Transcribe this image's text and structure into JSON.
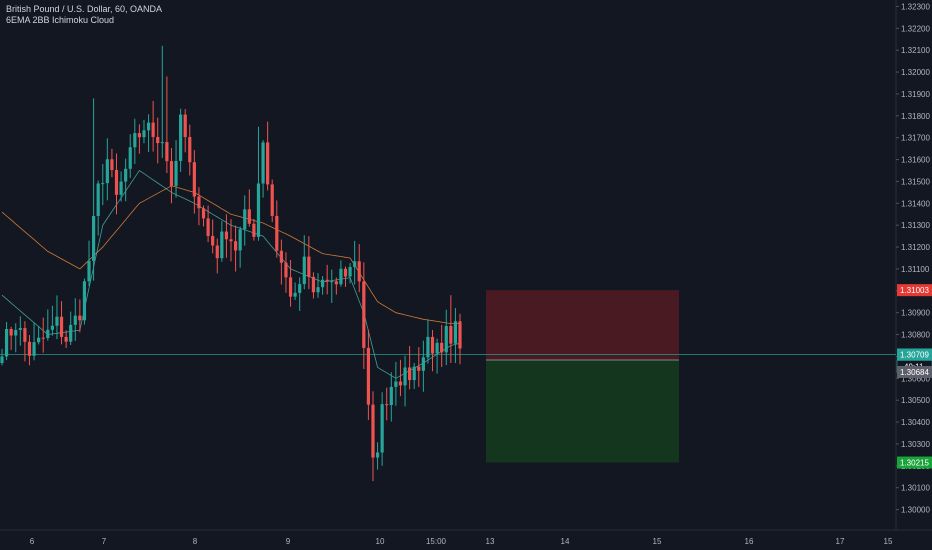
{
  "header": {
    "symbol_title": "British Pound / U.S. Dollar, 60, OANDA",
    "indicator_label": "6EMA 2BB Ichimoku Cloud"
  },
  "price_tags": {
    "stop": "1.31003",
    "current": "1.30709",
    "countdown": "49:11",
    "entry": "1.30684",
    "target": "1.30215"
  },
  "colors": {
    "background": "#131722",
    "up": "#26a69a",
    "down": "#ef5350",
    "ema_fast": "#4db6ac",
    "ema_slow": "#ef8c3a",
    "stop_zone": "#4a1a22",
    "target_zone": "#14361f",
    "current_line": "#26a69a",
    "stop_tag": "#e53935",
    "target_tag": "#1aa33a",
    "entry_tag": "#5d606b"
  },
  "chart_data": {
    "type": "candlestick",
    "title": "British Pound / U.S. Dollar, 60, OANDA",
    "ylim": [
      1.2995,
      1.3235
    ],
    "y_ticks": [
      "1.32300",
      "1.32200",
      "1.32100",
      "1.32000",
      "1.31900",
      "1.31800",
      "1.31700",
      "1.31600",
      "1.31500",
      "1.31400",
      "1.31300",
      "1.31200",
      "1.31100",
      "1.31000",
      "1.30900",
      "1.30800",
      "1.30700",
      "1.30600",
      "1.30500",
      "1.30400",
      "1.30300",
      "1.30200",
      "1.30100",
      "1.30000"
    ],
    "x_tick_labels": [
      "6",
      "7",
      "8",
      "9",
      "10",
      "15:00",
      "13",
      "14",
      "15",
      "16",
      "17",
      "15"
    ],
    "close_path": [
      [
        0,
        1.3075
      ],
      [
        3,
        1.3085
      ],
      [
        6,
        1.3072
      ],
      [
        9,
        1.3078
      ],
      [
        12,
        1.3085
      ],
      [
        14,
        1.3078
      ],
      [
        17,
        1.3091
      ],
      [
        19,
        1.3114
      ],
      [
        21,
        1.3146
      ],
      [
        23,
        1.316
      ],
      [
        25,
        1.3142
      ],
      [
        27,
        1.3155
      ],
      [
        29,
        1.3168
      ],
      [
        31,
        1.3175
      ],
      [
        33,
        1.3172
      ],
      [
        35,
        1.317
      ],
      [
        36,
        1.316
      ],
      [
        37,
        1.315
      ],
      [
        38,
        1.3155
      ],
      [
        39,
        1.318
      ],
      [
        40,
        1.3168
      ],
      [
        41,
        1.3155
      ],
      [
        43,
        1.314
      ],
      [
        45,
        1.3125
      ],
      [
        47,
        1.3118
      ],
      [
        49,
        1.3128
      ],
      [
        51,
        1.312
      ],
      [
        53,
        1.3133
      ],
      [
        55,
        1.3128
      ],
      [
        56,
        1.315
      ],
      [
        57,
        1.317
      ],
      [
        58,
        1.315
      ],
      [
        60,
        1.312
      ],
      [
        62,
        1.3105
      ],
      [
        64,
        1.3095
      ],
      [
        66,
        1.3112
      ],
      [
        68,
        1.3098
      ],
      [
        70,
        1.3105
      ],
      [
        72,
        1.31
      ],
      [
        74,
        1.3108
      ],
      [
        76,
        1.311
      ],
      [
        77,
        1.3115
      ],
      [
        78,
        1.3106
      ],
      [
        79,
        1.3075
      ],
      [
        80,
        1.3045
      ],
      [
        81,
        1.302
      ],
      [
        82,
        1.303
      ],
      [
        83,
        1.3045
      ],
      [
        84,
        1.3052
      ],
      [
        86,
        1.3062
      ],
      [
        88,
        1.306
      ],
      [
        90,
        1.3064
      ],
      [
        92,
        1.307
      ],
      [
        93,
        1.3078
      ],
      [
        95,
        1.3072
      ],
      [
        96,
        1.3068
      ],
      [
        97,
        1.308
      ],
      [
        98,
        1.3072
      ],
      [
        99,
        1.3082
      ],
      [
        100,
        1.3071
      ]
    ],
    "spikes": [
      [
        20,
        "high",
        1.3188
      ],
      [
        35,
        "high",
        1.3212
      ],
      [
        36,
        "high",
        1.3198
      ],
      [
        56,
        "high",
        1.3175
      ],
      [
        81,
        "low",
        1.3013
      ],
      [
        98,
        "high",
        1.3098
      ]
    ],
    "series": [
      {
        "name": "EMA fast",
        "values": [
          [
            0,
            1.3098
          ],
          [
            10,
            1.308
          ],
          [
            17,
            1.3082
          ],
          [
            22,
            1.313
          ],
          [
            30,
            1.3155
          ],
          [
            37,
            1.3145
          ],
          [
            42,
            1.314
          ],
          [
            50,
            1.313
          ],
          [
            57,
            1.3125
          ],
          [
            63,
            1.311
          ],
          [
            70,
            1.3104
          ],
          [
            76,
            1.3106
          ],
          [
            79,
            1.309
          ],
          [
            82,
            1.3065
          ],
          [
            86,
            1.306
          ],
          [
            92,
            1.3067
          ],
          [
            98,
            1.3075
          ],
          [
            100,
            1.3076
          ]
        ]
      },
      {
        "name": "EMA slow",
        "values": [
          [
            0,
            1.3136
          ],
          [
            10,
            1.3118
          ],
          [
            17,
            1.311
          ],
          [
            22,
            1.312
          ],
          [
            30,
            1.314
          ],
          [
            37,
            1.3148
          ],
          [
            42,
            1.3145
          ],
          [
            50,
            1.3135
          ],
          [
            57,
            1.3131
          ],
          [
            63,
            1.3125
          ],
          [
            70,
            1.3117
          ],
          [
            76,
            1.3115
          ],
          [
            79,
            1.3105
          ],
          [
            82,
            1.3095
          ],
          [
            86,
            1.309
          ],
          [
            92,
            1.3087
          ],
          [
            98,
            1.3085
          ],
          [
            100,
            1.3085
          ]
        ]
      }
    ],
    "position": {
      "stop": 1.31003,
      "entry": 1.30684,
      "target": 1.30215,
      "current": 1.30709
    }
  }
}
